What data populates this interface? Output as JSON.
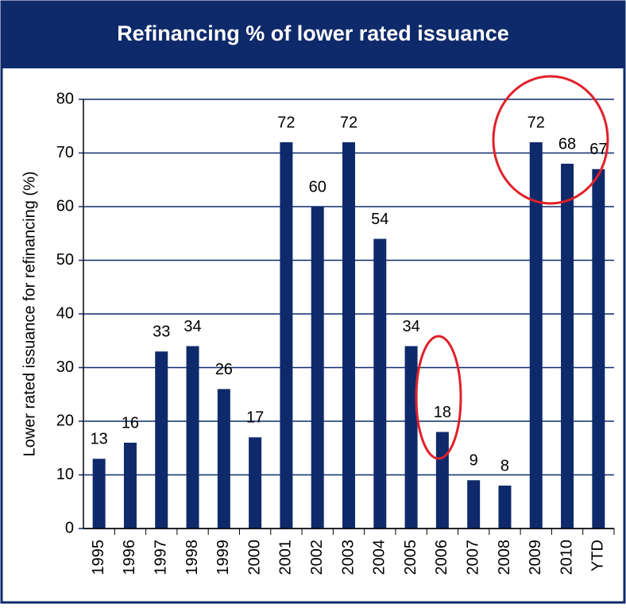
{
  "chart_data": {
    "type": "bar",
    "title": "Refinancing % of lower rated issuance",
    "ylabel": "Lower rated issuance for refinancing (%)",
    "categories": [
      "1995",
      "1996",
      "1997",
      "1998",
      "1999",
      "2000",
      "2001",
      "2002",
      "2003",
      "2004",
      "2005",
      "2006",
      "2007",
      "2008",
      "2009",
      "2010",
      "YTD"
    ],
    "values": [
      13,
      16,
      33,
      34,
      26,
      17,
      72,
      60,
      72,
      54,
      34,
      18,
      9,
      8,
      72,
      68,
      67
    ],
    "color": "#0f2a6b",
    "ylim": [
      0,
      80
    ],
    "yticks": [
      0,
      10,
      20,
      30,
      40,
      50,
      60,
      70,
      80
    ],
    "grid": true
  }
}
